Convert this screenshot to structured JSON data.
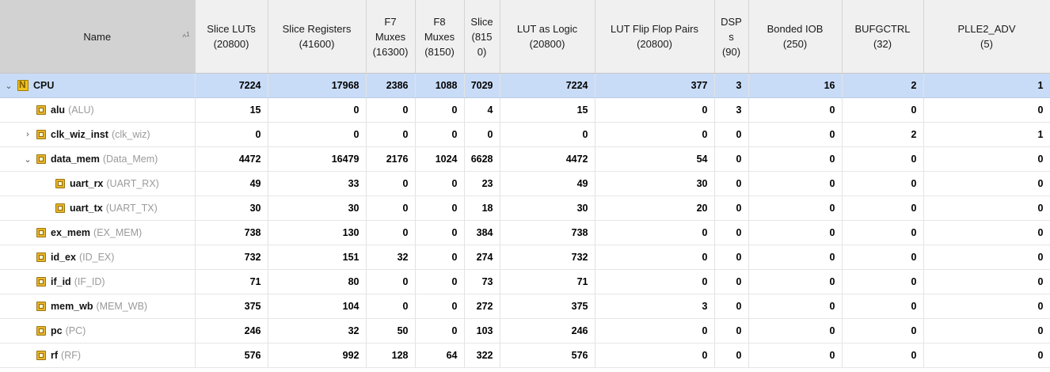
{
  "columns": [
    {
      "label": "Name",
      "sort_indicator": "^",
      "sort_order": "1"
    },
    {
      "label": "Slice LUTs\n(20800)"
    },
    {
      "label": "Slice Registers\n(41600)"
    },
    {
      "label": "F7\nMuxes\n(16300)"
    },
    {
      "label": "F8\nMuxes\n(8150)"
    },
    {
      "label": "Slice\n(815\n0)"
    },
    {
      "label": "LUT as Logic\n(20800)"
    },
    {
      "label": "LUT Flip Flop Pairs\n(20800)"
    },
    {
      "label": "DSP\ns\n(90)"
    },
    {
      "label": "Bonded IOB\n(250)"
    },
    {
      "label": "BUFGCTRL\n(32)"
    },
    {
      "label": "PLLE2_ADV\n(5)"
    }
  ],
  "rows": [
    {
      "name": "CPU",
      "type": "",
      "level": 0,
      "toggle": "⌄",
      "icon": "top-module-icon",
      "selected": true,
      "values": [
        "7224",
        "17968",
        "2386",
        "1088",
        "7029",
        "7224",
        "377",
        "3",
        "16",
        "2",
        "1"
      ]
    },
    {
      "name": "alu",
      "type": "(ALU)",
      "level": 1,
      "toggle": "",
      "icon": "module-icon",
      "selected": false,
      "values": [
        "15",
        "0",
        "0",
        "0",
        "4",
        "15",
        "0",
        "3",
        "0",
        "0",
        "0"
      ]
    },
    {
      "name": "clk_wiz_inst",
      "type": "(clk_wiz)",
      "level": 1,
      "toggle": "›",
      "icon": "module-icon",
      "selected": false,
      "values": [
        "0",
        "0",
        "0",
        "0",
        "0",
        "0",
        "0",
        "0",
        "0",
        "2",
        "1"
      ]
    },
    {
      "name": "data_mem",
      "type": "(Data_Mem)",
      "level": 1,
      "toggle": "⌄",
      "icon": "module-icon",
      "selected": false,
      "values": [
        "4472",
        "16479",
        "2176",
        "1024",
        "6628",
        "4472",
        "54",
        "0",
        "0",
        "0",
        "0"
      ]
    },
    {
      "name": "uart_rx",
      "type": "(UART_RX)",
      "level": 2,
      "toggle": "",
      "icon": "module-icon",
      "selected": false,
      "values": [
        "49",
        "33",
        "0",
        "0",
        "23",
        "49",
        "30",
        "0",
        "0",
        "0",
        "0"
      ]
    },
    {
      "name": "uart_tx",
      "type": "(UART_TX)",
      "level": 2,
      "toggle": "",
      "icon": "module-icon",
      "selected": false,
      "values": [
        "30",
        "30",
        "0",
        "0",
        "18",
        "30",
        "20",
        "0",
        "0",
        "0",
        "0"
      ]
    },
    {
      "name": "ex_mem",
      "type": "(EX_MEM)",
      "level": 1,
      "toggle": "",
      "icon": "module-icon",
      "selected": false,
      "values": [
        "738",
        "130",
        "0",
        "0",
        "384",
        "738",
        "0",
        "0",
        "0",
        "0",
        "0"
      ]
    },
    {
      "name": "id_ex",
      "type": "(ID_EX)",
      "level": 1,
      "toggle": "",
      "icon": "module-icon",
      "selected": false,
      "values": [
        "732",
        "151",
        "32",
        "0",
        "274",
        "732",
        "0",
        "0",
        "0",
        "0",
        "0"
      ]
    },
    {
      "name": "if_id",
      "type": "(IF_ID)",
      "level": 1,
      "toggle": "",
      "icon": "module-icon",
      "selected": false,
      "values": [
        "71",
        "80",
        "0",
        "0",
        "73",
        "71",
        "0",
        "0",
        "0",
        "0",
        "0"
      ]
    },
    {
      "name": "mem_wb",
      "type": "(MEM_WB)",
      "level": 1,
      "toggle": "",
      "icon": "module-icon",
      "selected": false,
      "values": [
        "375",
        "104",
        "0",
        "0",
        "272",
        "375",
        "3",
        "0",
        "0",
        "0",
        "0"
      ]
    },
    {
      "name": "pc",
      "type": "(PC)",
      "level": 1,
      "toggle": "",
      "icon": "module-icon",
      "selected": false,
      "values": [
        "246",
        "32",
        "50",
        "0",
        "103",
        "246",
        "0",
        "0",
        "0",
        "0",
        "0"
      ]
    },
    {
      "name": "rf",
      "type": "(RF)",
      "level": 1,
      "toggle": "",
      "icon": "module-icon",
      "selected": false,
      "values": [
        "576",
        "992",
        "128",
        "64",
        "322",
        "576",
        "0",
        "0",
        "0",
        "0",
        "0"
      ]
    }
  ],
  "colors": {
    "selected_row": "#c9dcf7",
    "header_bg": "#f0f0f0",
    "sorted_header_bg": "#d2d2d2"
  }
}
